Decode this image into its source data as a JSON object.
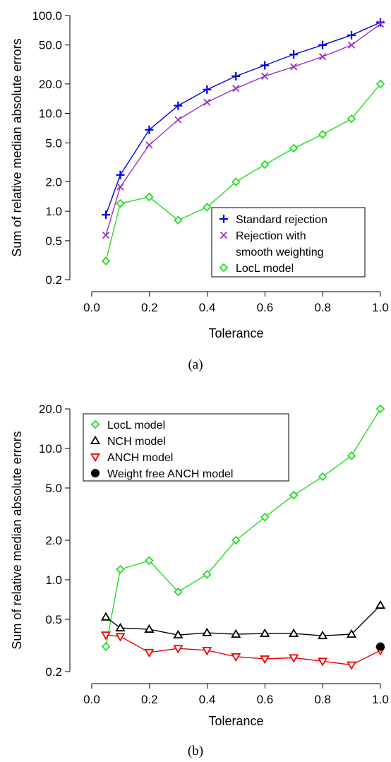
{
  "chart_data": [
    {
      "type": "line",
      "panel_label": "(a)",
      "xlabel": "Tolerance",
      "ylabel": "Sum of relative median absolute errors",
      "yscale": "log",
      "xlim": [
        0.0,
        1.0
      ],
      "xticks": [
        "0.0",
        "0.2",
        "0.4",
        "0.6",
        "0.8",
        "1.0"
      ],
      "yticks": [
        {
          "value": 0.2,
          "label": "0.2"
        },
        {
          "value": 0.5,
          "label": "0.5"
        },
        {
          "value": 1.0,
          "label": "1.0"
        },
        {
          "value": 2.0,
          "label": "2.0"
        },
        {
          "value": 5.0,
          "label": "5.0"
        },
        {
          "value": 10.0,
          "label": "10.0"
        },
        {
          "value": 20.0,
          "label": "20.0"
        },
        {
          "value": 50.0,
          "label": "50.0"
        },
        {
          "value": 100.0,
          "label": "100.0"
        }
      ],
      "grid": false,
      "legend_position": "bottom-right",
      "legend": [
        "Standard rejection",
        "Rejection with",
        "smooth weighting",
        "LocL model"
      ],
      "x": [
        0.05,
        0.1,
        0.2,
        0.3,
        0.4,
        0.5,
        0.6,
        0.7,
        0.8,
        0.9,
        1.0
      ],
      "series": [
        {
          "name": "Standard rejection",
          "color": "#0000ee",
          "marker": "plus",
          "values": [
            0.92,
            2.35,
            6.8,
            12.0,
            17.5,
            24.0,
            31.0,
            40.0,
            50.0,
            63.0,
            85.0
          ]
        },
        {
          "name": "Rejection with smooth weighting",
          "color": "#9a32cd",
          "marker": "cross",
          "values": [
            0.57,
            1.78,
            4.75,
            8.6,
            13.0,
            18.0,
            24.0,
            30.0,
            38.0,
            50.0,
            82.0
          ]
        },
        {
          "name": "LocL model",
          "color": "#22dd22",
          "marker": "diamond",
          "values": [
            0.31,
            1.2,
            1.4,
            0.81,
            1.1,
            2.0,
            3.0,
            4.4,
            6.1,
            8.8,
            20.0
          ]
        }
      ]
    },
    {
      "type": "line",
      "panel_label": "(b)",
      "xlabel": "Tolerance",
      "ylabel": "Sum of relative median absolute errors",
      "yscale": "log",
      "xlim": [
        0.0,
        1.0
      ],
      "xticks": [
        "0.0",
        "0.2",
        "0.4",
        "0.6",
        "0.8",
        "1.0"
      ],
      "yticks": [
        {
          "value": 0.2,
          "label": "0.2"
        },
        {
          "value": 0.5,
          "label": "0.5"
        },
        {
          "value": 1.0,
          "label": "1.0"
        },
        {
          "value": 2.0,
          "label": "2.0"
        },
        {
          "value": 5.0,
          "label": "5.0"
        },
        {
          "value": 10.0,
          "label": "10.0"
        },
        {
          "value": 20.0,
          "label": "20.0"
        }
      ],
      "grid": false,
      "legend_position": "top-left",
      "legend": [
        "LocL model",
        "NCH model",
        "ANCH model",
        "Weight free ANCH model"
      ],
      "x": [
        0.05,
        0.1,
        0.2,
        0.3,
        0.4,
        0.5,
        0.6,
        0.7,
        0.8,
        0.9,
        1.0
      ],
      "series": [
        {
          "name": "LocL model",
          "color": "#22dd22",
          "marker": "diamond",
          "values": [
            0.31,
            1.2,
            1.4,
            0.81,
            1.1,
            2.0,
            3.0,
            4.4,
            6.1,
            8.8,
            20.0
          ]
        },
        {
          "name": "NCH model",
          "color": "#000000",
          "marker": "triangle-up",
          "values": [
            0.52,
            0.43,
            0.42,
            0.38,
            0.395,
            0.385,
            0.39,
            0.39,
            0.375,
            0.385,
            0.64
          ]
        },
        {
          "name": "ANCH model",
          "color": "#ee0000",
          "marker": "triangle-down",
          "values": [
            0.38,
            0.37,
            0.28,
            0.3,
            0.29,
            0.26,
            0.25,
            0.255,
            0.24,
            0.225,
            0.29
          ]
        },
        {
          "name": "Weight free ANCH model",
          "color": "#000000",
          "marker": "filled-circle",
          "points": [
            {
              "x": 1.0,
              "y": 0.31
            }
          ]
        }
      ]
    }
  ]
}
